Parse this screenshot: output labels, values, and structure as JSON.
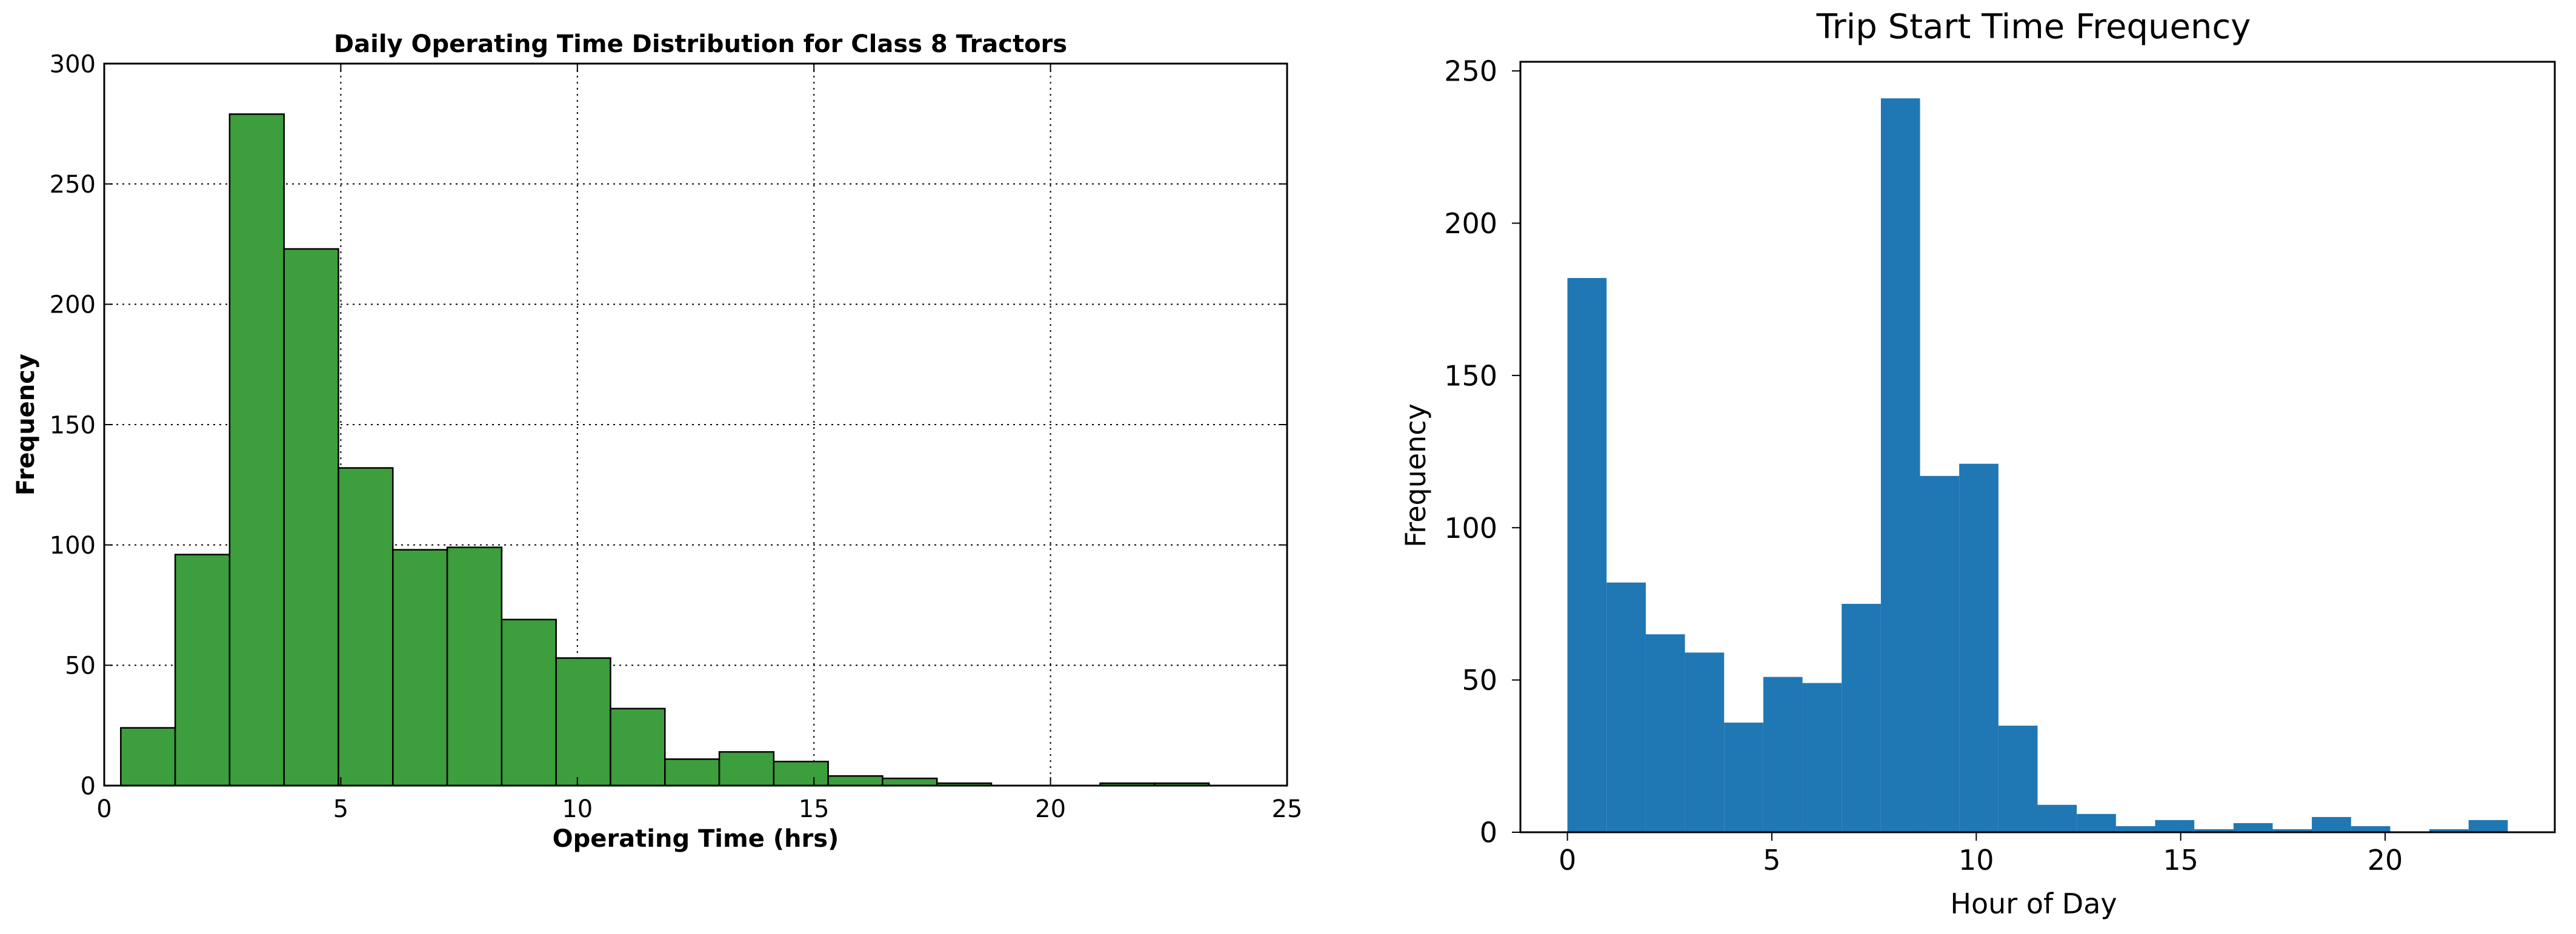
{
  "chart_data": [
    {
      "type": "bar",
      "title": "Daily Operating Time Distribution for Class 8 Tractors",
      "xlabel": "Operating Time (hrs)",
      "ylabel": "Frequency",
      "xlim": [
        0,
        25
      ],
      "ylim": [
        0,
        300
      ],
      "xticks": [
        0,
        5,
        10,
        15,
        20,
        25
      ],
      "yticks": [
        0,
        50,
        100,
        150,
        200,
        250,
        300
      ],
      "grid": true,
      "color": "#3c9e3c",
      "edgecolor": "#000000",
      "bins": [
        {
          "x0": 0.35,
          "x1": 1.5,
          "value": 24
        },
        {
          "x0": 1.5,
          "x1": 2.65,
          "value": 96
        },
        {
          "x0": 2.65,
          "x1": 3.8,
          "value": 279
        },
        {
          "x0": 3.8,
          "x1": 4.95,
          "value": 223
        },
        {
          "x0": 4.95,
          "x1": 6.1,
          "value": 132
        },
        {
          "x0": 6.1,
          "x1": 7.25,
          "value": 98
        },
        {
          "x0": 7.25,
          "x1": 8.4,
          "value": 99
        },
        {
          "x0": 8.4,
          "x1": 9.55,
          "value": 69
        },
        {
          "x0": 9.55,
          "x1": 10.7,
          "value": 53
        },
        {
          "x0": 10.7,
          "x1": 11.85,
          "value": 32
        },
        {
          "x0": 11.85,
          "x1": 13.0,
          "value": 11
        },
        {
          "x0": 13.0,
          "x1": 14.15,
          "value": 14
        },
        {
          "x0": 14.15,
          "x1": 15.3,
          "value": 10
        },
        {
          "x0": 15.3,
          "x1": 16.45,
          "value": 4
        },
        {
          "x0": 16.45,
          "x1": 17.6,
          "value": 3
        },
        {
          "x0": 17.6,
          "x1": 18.75,
          "value": 1
        },
        {
          "x0": 18.75,
          "x1": 19.9,
          "value": 0
        },
        {
          "x0": 19.9,
          "x1": 21.05,
          "value": 0
        },
        {
          "x0": 21.05,
          "x1": 22.2,
          "value": 1
        },
        {
          "x0": 22.2,
          "x1": 23.35,
          "value": 1
        }
      ]
    },
    {
      "type": "bar",
      "title": "Trip Start Time Frequency",
      "xlabel": "Hour of Day",
      "ylabel": "Frequency",
      "xlim": [
        -1.15,
        24.15
      ],
      "ylim": [
        0,
        253
      ],
      "xticks": [
        0,
        5,
        10,
        15,
        20
      ],
      "yticks": [
        0,
        50,
        100,
        150,
        200,
        250
      ],
      "grid": false,
      "color": "#1f77b4",
      "edgecolor": "none",
      "bins": [
        {
          "x0": 0.0,
          "x1": 0.958,
          "value": 182
        },
        {
          "x0": 0.958,
          "x1": 1.917,
          "value": 82
        },
        {
          "x0": 1.917,
          "x1": 2.875,
          "value": 65
        },
        {
          "x0": 2.875,
          "x1": 3.833,
          "value": 59
        },
        {
          "x0": 3.833,
          "x1": 4.792,
          "value": 36
        },
        {
          "x0": 4.792,
          "x1": 5.75,
          "value": 51
        },
        {
          "x0": 5.75,
          "x1": 6.708,
          "value": 49
        },
        {
          "x0": 6.708,
          "x1": 7.667,
          "value": 75
        },
        {
          "x0": 7.667,
          "x1": 8.625,
          "value": 241
        },
        {
          "x0": 8.625,
          "x1": 9.583,
          "value": 117
        },
        {
          "x0": 9.583,
          "x1": 10.542,
          "value": 121
        },
        {
          "x0": 10.542,
          "x1": 11.5,
          "value": 35
        },
        {
          "x0": 11.5,
          "x1": 12.458,
          "value": 9
        },
        {
          "x0": 12.458,
          "x1": 13.417,
          "value": 6
        },
        {
          "x0": 13.417,
          "x1": 14.375,
          "value": 2
        },
        {
          "x0": 14.375,
          "x1": 15.333,
          "value": 4
        },
        {
          "x0": 15.333,
          "x1": 16.292,
          "value": 1
        },
        {
          "x0": 16.292,
          "x1": 17.25,
          "value": 3
        },
        {
          "x0": 17.25,
          "x1": 18.208,
          "value": 1
        },
        {
          "x0": 18.208,
          "x1": 19.167,
          "value": 5
        },
        {
          "x0": 19.167,
          "x1": 20.125,
          "value": 2
        },
        {
          "x0": 20.125,
          "x1": 21.083,
          "value": 0
        },
        {
          "x0": 21.083,
          "x1": 22.042,
          "value": 1
        },
        {
          "x0": 22.042,
          "x1": 23.0,
          "value": 4
        }
      ]
    }
  ]
}
